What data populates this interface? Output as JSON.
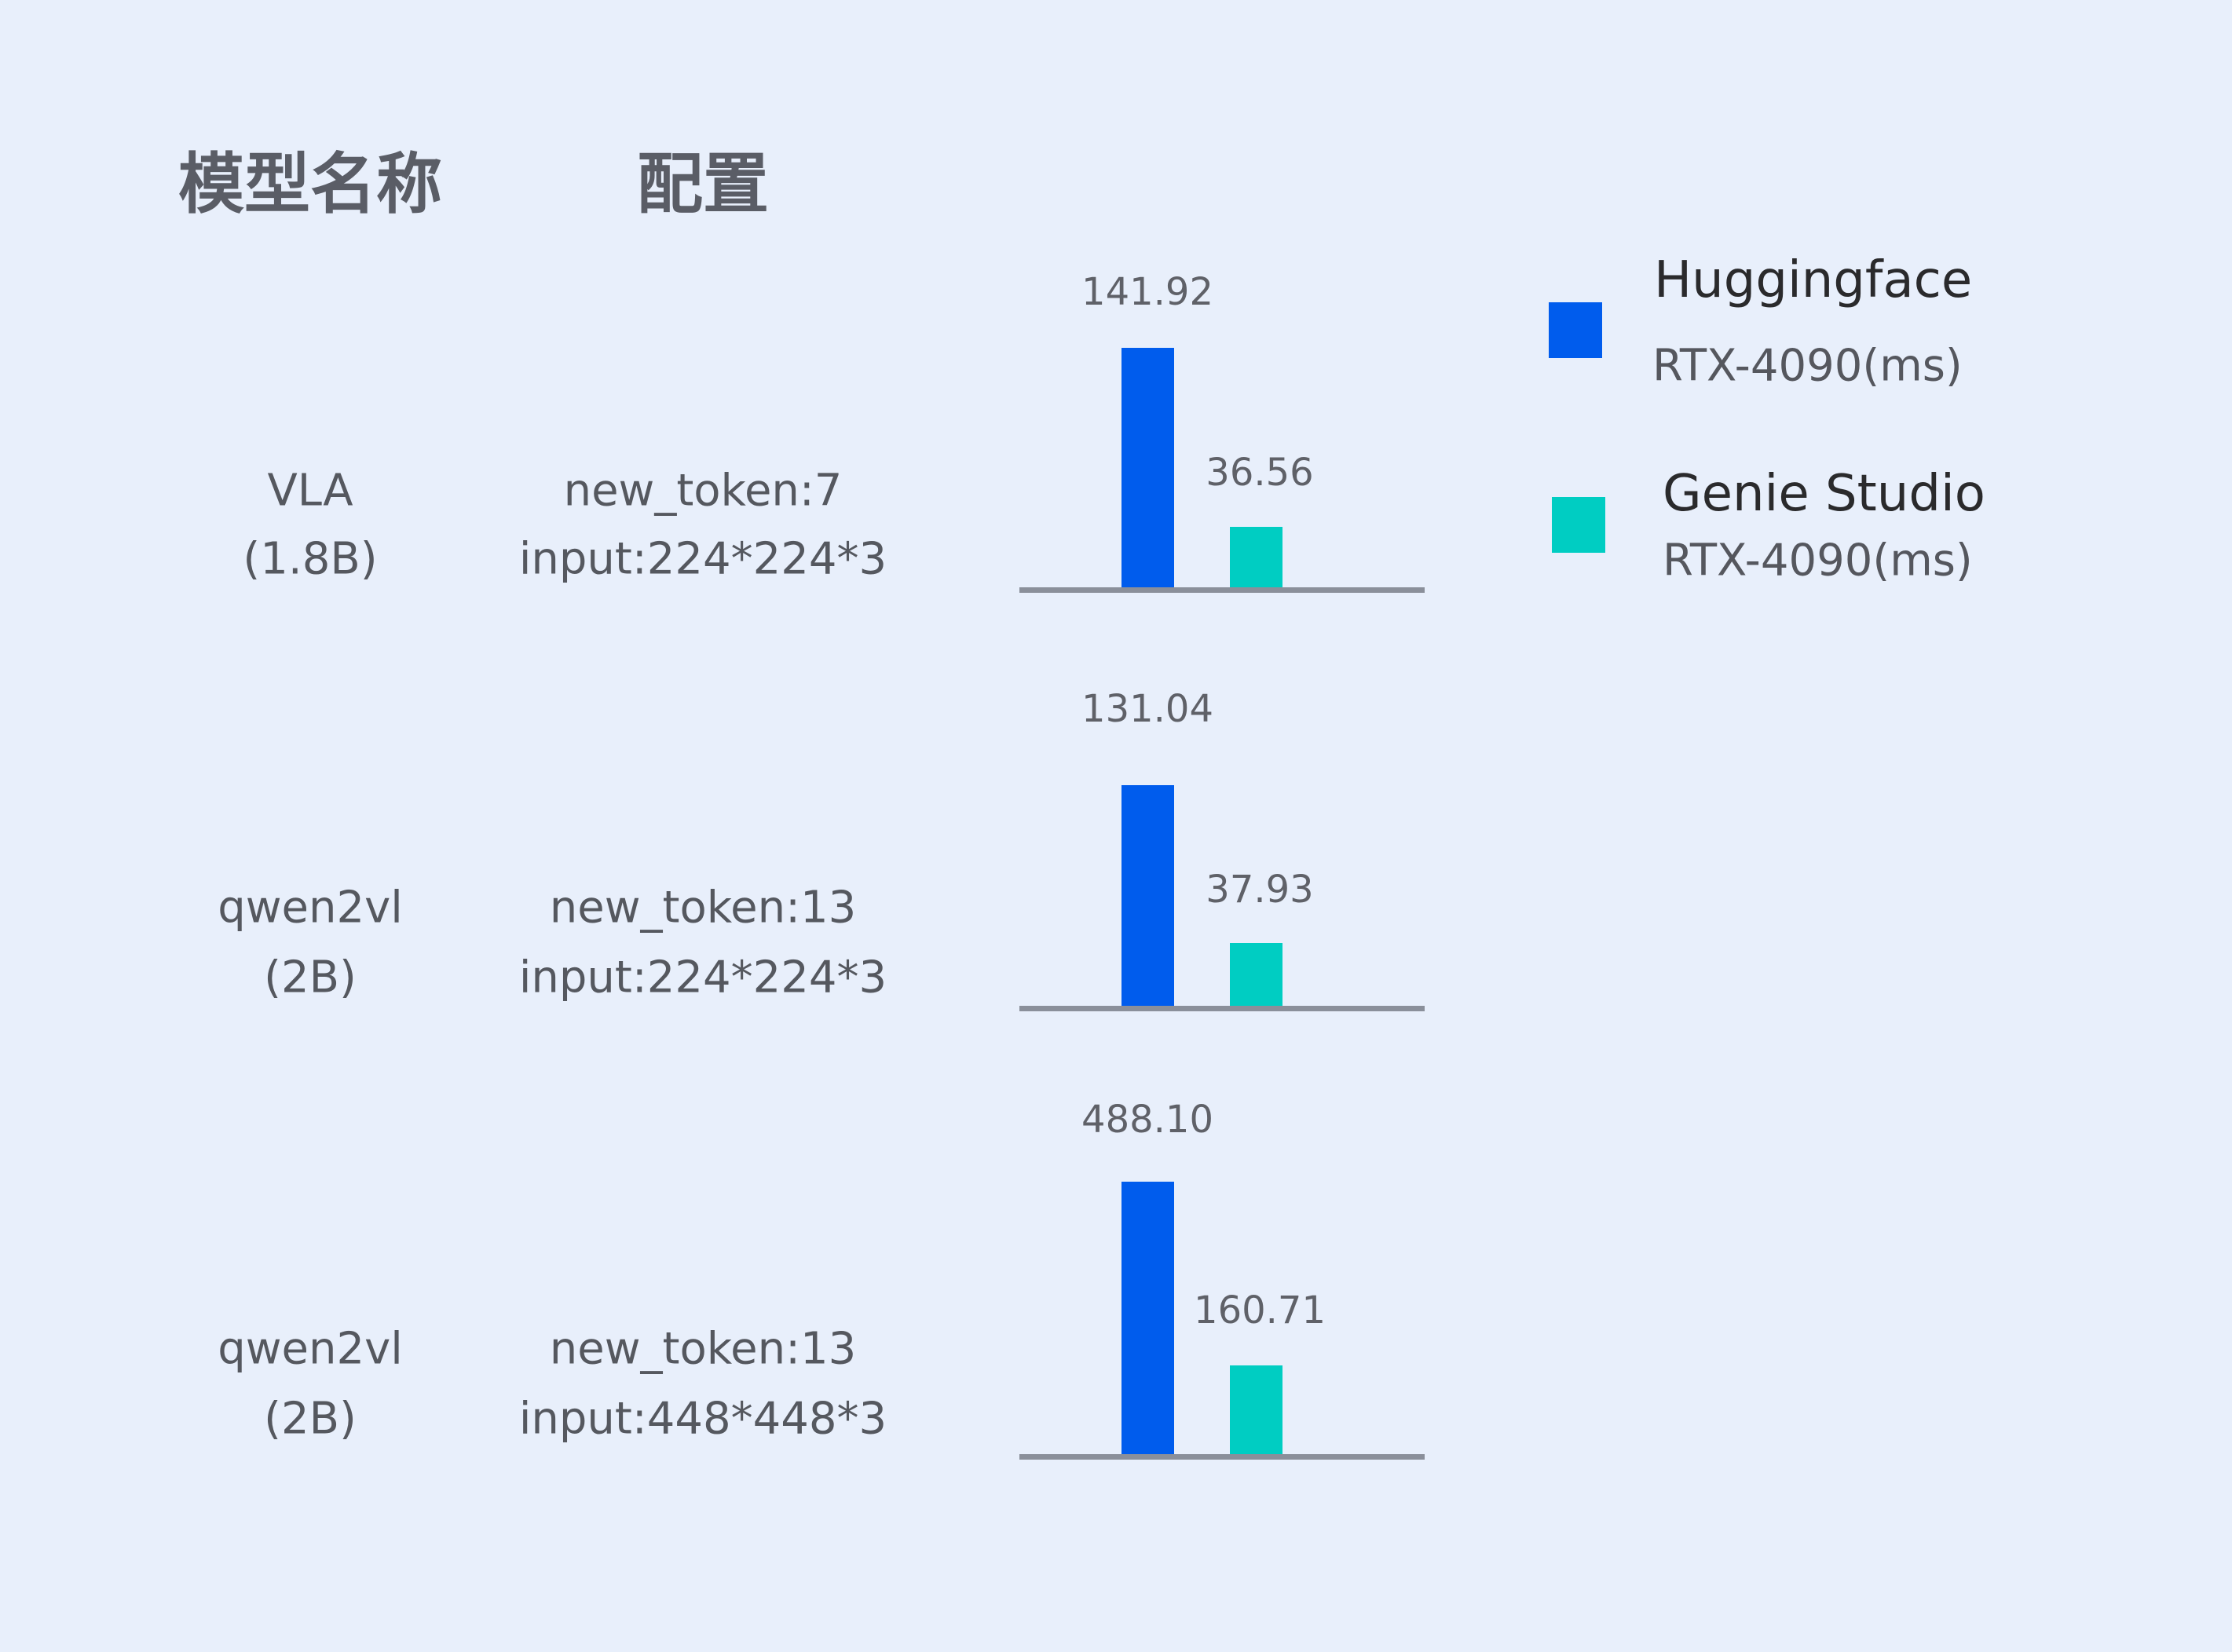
{
  "headers": {
    "model": "模型名称",
    "config": "配置"
  },
  "colors": {
    "huggingface": "#005ced",
    "genie_studio": "#00cdc2",
    "axis": "#8a8f9a",
    "background": "#e8effb"
  },
  "legend": [
    {
      "name": "Huggingface",
      "sub": "RTX-4090(ms)"
    },
    {
      "name": "Genie Studio",
      "sub": "RTX-4090(ms)"
    }
  ],
  "chart_data": {
    "type": "bar",
    "unit": "ms",
    "legend_placement": "right",
    "grid": false,
    "rows": [
      {
        "model": "VLA",
        "size": "(1.8B)",
        "config_line1": "new_token:7",
        "config_line2": "input:224*224*3",
        "values": [
          141.92,
          36.56
        ],
        "labels": [
          "141.92",
          "36.56"
        ]
      },
      {
        "model": "qwen2vl",
        "size": "(2B)",
        "config_line1": "new_token:13",
        "config_line2": "input:224*224*3",
        "values": [
          131.04,
          37.93
        ],
        "labels": [
          "131.04",
          "37.93"
        ]
      },
      {
        "model": "qwen2vl",
        "size": "(2B)",
        "config_line1": "new_token:13",
        "config_line2": "input:448*448*3",
        "values": [
          488.1,
          160.71
        ],
        "labels": [
          "488.10",
          "160.71"
        ]
      }
    ],
    "series": [
      {
        "name": "Huggingface RTX-4090(ms)",
        "values": [
          141.92,
          131.04,
          488.1
        ]
      },
      {
        "name": "Genie Studio RTX-4090(ms)",
        "values": [
          36.56,
          37.93,
          160.71
        ]
      }
    ]
  }
}
